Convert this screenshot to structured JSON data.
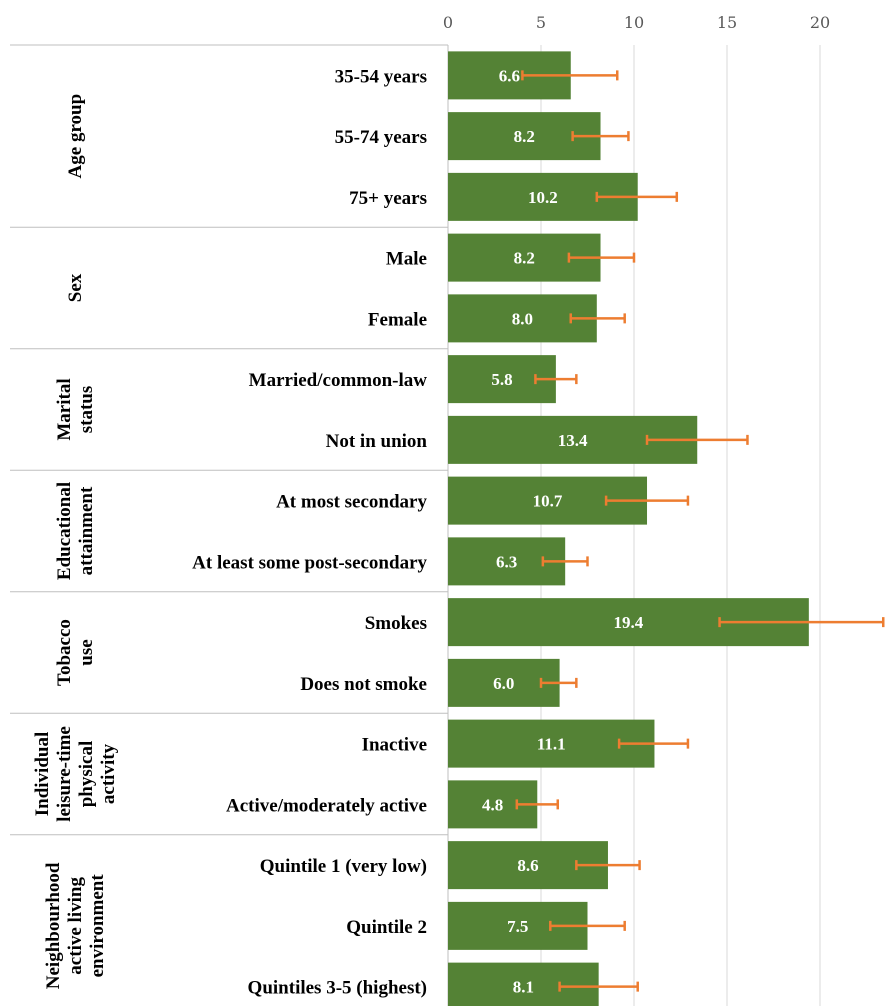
{
  "chart_data": {
    "type": "bar",
    "orientation": "horizontal",
    "title": "",
    "xlabel": "",
    "ylabel": "",
    "xlim": [
      0,
      20
    ],
    "xticks": [
      0,
      5,
      10,
      15,
      20
    ],
    "grid": true,
    "bar_color": "#548235",
    "error_bar_color": "#ED7D31",
    "groups": [
      {
        "label": "Age group",
        "lines": [
          "Age group"
        ],
        "categories": [
          {
            "label": "35-54 years",
            "value": 6.6,
            "value_label": "6.6",
            "ci": [
              4.0,
              9.1
            ]
          },
          {
            "label": "55-74 years",
            "value": 8.2,
            "value_label": "8.2",
            "ci": [
              6.7,
              9.7
            ]
          },
          {
            "label": "75+ years",
            "value": 10.2,
            "value_label": "10.2",
            "ci": [
              8.0,
              12.3
            ]
          }
        ]
      },
      {
        "label": "Sex",
        "lines": [
          "Sex"
        ],
        "categories": [
          {
            "label": "Male",
            "value": 8.2,
            "value_label": "8.2",
            "ci": [
              6.5,
              10.0
            ]
          },
          {
            "label": "Female",
            "value": 8.0,
            "value_label": "8.0",
            "ci": [
              6.6,
              9.5
            ]
          }
        ]
      },
      {
        "label": "Marital status",
        "lines": [
          "Marital",
          "status"
        ],
        "categories": [
          {
            "label": "Married/common-law",
            "value": 5.8,
            "value_label": "5.8",
            "ci": [
              4.7,
              6.9
            ]
          },
          {
            "label": "Not in union",
            "value": 13.4,
            "value_label": "13.4",
            "ci": [
              10.7,
              16.1
            ]
          }
        ]
      },
      {
        "label": "Educational attainment",
        "lines": [
          "Educational",
          "attainment"
        ],
        "categories": [
          {
            "label": "At most secondary",
            "value": 10.7,
            "value_label": "10.7",
            "ci": [
              8.5,
              12.9
            ]
          },
          {
            "label": "At least some post-secondary",
            "value": 6.3,
            "value_label": "6.3",
            "ci": [
              5.1,
              7.5
            ]
          }
        ]
      },
      {
        "label": "Tobacco use",
        "lines": [
          "Tobacco",
          "use"
        ],
        "categories": [
          {
            "label": "Smokes",
            "value": 19.4,
            "value_label": "19.4",
            "ci": [
              14.6,
              23.4
            ]
          },
          {
            "label": "Does not smoke",
            "value": 6.0,
            "value_label": "6.0",
            "ci": [
              5.0,
              6.9
            ]
          }
        ]
      },
      {
        "label": "Individual leisure-time physical activity",
        "lines": [
          "Individual",
          "leisure-time",
          "physical",
          "activity"
        ],
        "categories": [
          {
            "label": "Inactive",
            "value": 11.1,
            "value_label": "11.1",
            "ci": [
              9.2,
              12.9
            ]
          },
          {
            "label": "Active/moderately active",
            "value": 4.8,
            "value_label": "4.8",
            "ci": [
              3.7,
              5.9
            ]
          }
        ]
      },
      {
        "label": "Neighbourhood active living environment",
        "lines": [
          "Neighbourhood",
          "active living",
          "environment"
        ],
        "categories": [
          {
            "label": "Quintile 1 (very low)",
            "value": 8.6,
            "value_label": "8.6",
            "ci": [
              6.9,
              10.3
            ]
          },
          {
            "label": "Quintile 2",
            "value": 7.5,
            "value_label": "7.5",
            "ci": [
              5.5,
              9.5
            ]
          },
          {
            "label": "Quintiles 3-5 (highest)",
            "value": 8.1,
            "value_label": "8.1",
            "ci": [
              6.0,
              10.2
            ]
          }
        ]
      }
    ]
  }
}
